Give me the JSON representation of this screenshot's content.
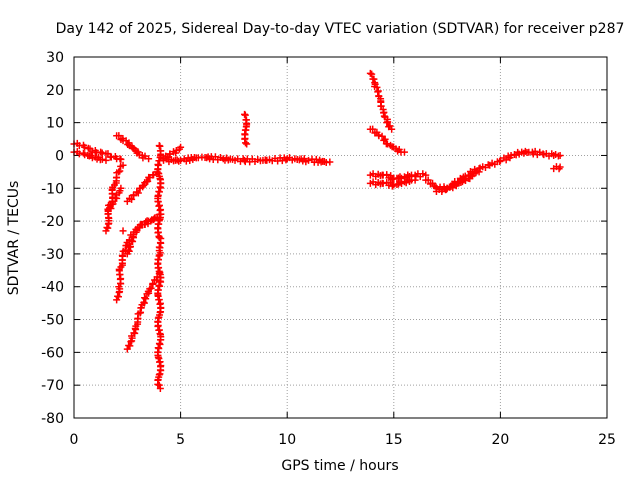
{
  "chart_data": {
    "type": "scatter",
    "title": "Day 142 of 2025, Sidereal Day-to-day VTEC variation (SDTVAR) for receiver p287",
    "xlabel": "GPS time / hours",
    "ylabel": "SDTVAR / TECUs",
    "xlim": [
      0,
      25
    ],
    "ylim": [
      -80,
      30
    ],
    "xticks": [
      0,
      5,
      10,
      15,
      20,
      25
    ],
    "yticks": [
      -80,
      -70,
      -60,
      -50,
      -40,
      -30,
      -20,
      -10,
      0,
      10,
      20,
      30
    ],
    "xtick_labels": [
      "0",
      "5",
      "10",
      "15",
      "20",
      "25"
    ],
    "ytick_labels": [
      "-80",
      "-70",
      "-60",
      "-50",
      "-40",
      "-30",
      "-20",
      "-10",
      "0",
      "10",
      "20",
      "30"
    ],
    "grid": true,
    "marker": "+",
    "color": "#ff0000",
    "series": [
      {
        "name": "SDTVAR",
        "segments": [
          {
            "x": [
              0.0,
              0.25,
              0.5,
              0.75,
              1.0,
              1.25,
              1.5,
              1.75,
              2.0,
              2.2
            ],
            "y": [
              3.5,
              3.0,
              2.5,
              2.0,
              1.5,
              1.0,
              0.5,
              -0.5,
              -1.0,
              -1.2
            ]
          },
          {
            "x": [
              0.0,
              0.25,
              0.5,
              1.0,
              1.5
            ],
            "y": [
              1.0,
              0.5,
              0.2,
              -0.5,
              -1.5
            ]
          },
          {
            "x": [
              1.5,
              1.7,
              1.9,
              2.1,
              2.3
            ],
            "y": [
              -23,
              -15,
              -9,
              -5,
              -3
            ]
          },
          {
            "x": [
              1.6,
              1.8,
              2.0,
              2.2
            ],
            "y": [
              -17,
              -14,
              -12,
              -10
            ]
          },
          {
            "x": [
              2.0,
              2.1,
              2.2,
              2.4,
              2.6,
              2.8,
              3.0,
              3.2,
              3.5,
              3.8,
              4.0
            ],
            "y": [
              -44,
              -40,
              -34,
              -29,
              -26,
              -24,
              -22,
              -21,
              -20,
              -19,
              -18
            ]
          },
          {
            "x": [
              2.5,
              2.7,
              2.9,
              3.1,
              3.3,
              3.5,
              3.7,
              3.9,
              4.0
            ],
            "y": [
              -59,
              -55,
              -52,
              -48,
              -45,
              -42,
              -39,
              -37,
              -36
            ]
          },
          {
            "x": [
              2.5,
              2.6,
              2.8,
              3.0,
              3.3,
              3.6,
              3.9
            ],
            "y": [
              -30,
              -27,
              -24,
              -22,
              -21,
              -20,
              -19
            ]
          },
          {
            "x": [
              2.5,
              2.8,
              3.1,
              3.4,
              3.7,
              3.9
            ],
            "y": [
              -14,
              -12,
              -10,
              -8,
              -6,
              -5
            ]
          },
          {
            "x": [
              2.0,
              2.3,
              2.6,
              2.9,
              3.2,
              3.5
            ],
            "y": [
              6,
              4.5,
              3,
              1.5,
              0,
              -1
            ]
          },
          {
            "x": [
              4.2,
              4.5,
              4.8,
              5.0
            ],
            "y": [
              -1,
              0.5,
              1.5,
              2.5
            ]
          },
          {
            "x": [
              4.2,
              5,
              6,
              7,
              8,
              9,
              10,
              11,
              12
            ],
            "y": [
              -1.5,
              -1.5,
              -0.5,
              -1,
              -1.5,
              -1.5,
              -1,
              -1.5,
              -2
            ]
          },
          {
            "x": [
              8.0,
              8.1
            ],
            "y": [
              12.5,
              3.5
            ]
          },
          {
            "x": [
              4.0,
              4.0,
              4.0,
              4.0,
              4.05
            ],
            "y": [
              3,
              -25,
              -29,
              -70,
              -71
            ]
          },
          {
            "x": [
              2.3
            ],
            "y": [
              -23
            ]
          },
          {
            "x": [
              13.9,
              14.1,
              14.3,
              14.5,
              14.7,
              14.9
            ],
            "y": [
              25,
              21,
              18,
              14,
              11,
              8
            ]
          },
          {
            "x": [
              13.9,
              14.3,
              14.7,
              15.1,
              15.5
            ],
            "y": [
              8,
              6,
              3.5,
              2,
              1
            ]
          },
          {
            "x": [
              13.9,
              14.5,
              15.0,
              15.5,
              16.0,
              16.5
            ],
            "y": [
              -6,
              -6,
              -7,
              -6.5,
              -6,
              -6
            ]
          },
          {
            "x": [
              13.9,
              14.5,
              15.0,
              15.5,
              16.0
            ],
            "y": [
              -8.5,
              -8.5,
              -9,
              -8,
              -7.5
            ]
          },
          {
            "x": [
              16.5,
              17.0,
              17.5,
              18.0,
              18.5,
              19.0,
              19.5,
              20.0,
              20.5,
              21.0,
              21.5,
              22.0,
              22.5,
              22.8
            ],
            "y": [
              -7.5,
              -10,
              -10,
              -8,
              -6,
              -4,
              -3,
              -1.5,
              0,
              1,
              1,
              0.5,
              0,
              0
            ]
          },
          {
            "x": [
              17.0,
              17.5,
              18.0,
              18.5,
              19.0
            ],
            "y": [
              -11,
              -10,
              -8.5,
              -7,
              -5
            ]
          },
          {
            "x": [
              22.5,
              22.8
            ],
            "y": [
              -4,
              -3.5
            ]
          }
        ]
      }
    ]
  }
}
